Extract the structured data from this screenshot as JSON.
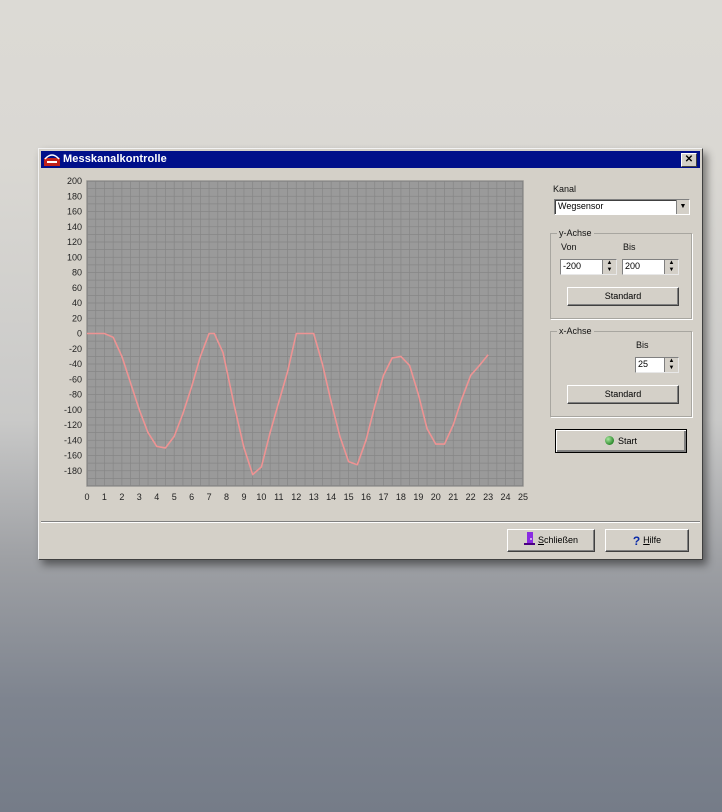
{
  "window": {
    "title": "Messkanalkontrolle",
    "close_glyph": "✕",
    "icon": "app-icon"
  },
  "panel": {
    "kanal_label": "Kanal",
    "kanal_value": "Wegsensor",
    "yachse": {
      "title": "y-Achse",
      "von_label": "Von",
      "bis_label": "Bis",
      "von_value": "-200",
      "bis_value": "200",
      "standard_label": "Standard"
    },
    "xachse": {
      "title": "x-Achse",
      "bis_label": "Bis",
      "bis_value": "25",
      "standard_label": "Standard"
    },
    "start_label": "Start"
  },
  "footer": {
    "schliessen_first": "S",
    "schliessen_rest": "chließen",
    "hilfe_first": "H",
    "hilfe_rest": "ilfe",
    "schliessen_icon": "door-exit-icon",
    "hilfe_icon": "question-mark-icon"
  },
  "colors": {
    "title_bar": "#000f8a",
    "plot_background": "#9a9a9a",
    "grid": "#868686",
    "curve": "#ee9393",
    "window_face": "#d4d0c8"
  },
  "chart_data": {
    "type": "line",
    "xlim": [
      0,
      25
    ],
    "ylim": [
      -200,
      200
    ],
    "x_ticks": [
      0,
      1,
      2,
      3,
      4,
      5,
      6,
      7,
      8,
      9,
      10,
      11,
      12,
      13,
      14,
      15,
      16,
      17,
      18,
      19,
      20,
      21,
      22,
      23,
      24,
      25
    ],
    "y_ticks": [
      200,
      180,
      160,
      140,
      120,
      100,
      80,
      60,
      40,
      20,
      0,
      -20,
      -40,
      -60,
      -80,
      -100,
      -120,
      -140,
      -160,
      -180
    ],
    "grid": true,
    "x_minor_per_major": 2,
    "y_minor_per_major": 2,
    "x": [
      0,
      0.5,
      1,
      1.5,
      2,
      2.5,
      3,
      3.5,
      4,
      4.5,
      5,
      5.5,
      6,
      6.5,
      7,
      7.3,
      7.8,
      8.5,
      9,
      9.5,
      10,
      10.5,
      11,
      11.5,
      12,
      12.5,
      13,
      13.5,
      14,
      14.5,
      15,
      15.5,
      16,
      16.5,
      17,
      17.5,
      18,
      18.5,
      19,
      19.5,
      20,
      20.5,
      21,
      21.5,
      22,
      22.5,
      23
    ],
    "y": [
      0,
      0,
      0,
      -5,
      -30,
      -65,
      -100,
      -130,
      -148,
      -150,
      -135,
      -105,
      -70,
      -30,
      0,
      0,
      -25,
      -100,
      -150,
      -185,
      -175,
      -130,
      -90,
      -50,
      0,
      0,
      0,
      -40,
      -90,
      -135,
      -168,
      -172,
      -140,
      -95,
      -55,
      -32,
      -30,
      -42,
      -80,
      -125,
      -145,
      -145,
      -120,
      -85,
      -55,
      -42,
      -28
    ]
  }
}
